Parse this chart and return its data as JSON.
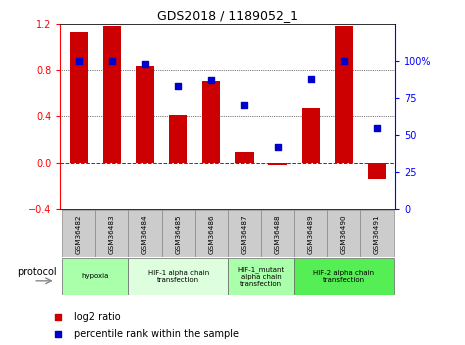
{
  "title": "GDS2018 / 1189052_1",
  "samples": [
    "GSM36482",
    "GSM36483",
    "GSM36484",
    "GSM36485",
    "GSM36486",
    "GSM36487",
    "GSM36488",
    "GSM36489",
    "GSM36490",
    "GSM36491"
  ],
  "log2_ratio": [
    1.13,
    1.18,
    0.84,
    0.41,
    0.71,
    0.09,
    -0.02,
    0.47,
    1.18,
    -0.14
  ],
  "percentile_rank": [
    100,
    100,
    98,
    83,
    87,
    70,
    42,
    88,
    100,
    55
  ],
  "bar_color": "#cc0000",
  "scatter_color": "#0000cc",
  "ylim_left": [
    -0.4,
    1.2
  ],
  "ylim_right": [
    0,
    125
  ],
  "yticks_left": [
    -0.4,
    0.0,
    0.4,
    0.8,
    1.2
  ],
  "yticks_right": [
    0,
    25,
    50,
    75,
    100
  ],
  "yticklabels_right": [
    "0",
    "25",
    "50",
    "75",
    "100%"
  ],
  "dotted_lines": [
    0.4,
    0.8
  ],
  "protocols": [
    {
      "label": "hypoxia",
      "start": 0,
      "end": 2,
      "color": "#aaffaa"
    },
    {
      "label": "HIF-1 alpha chain\ntransfection",
      "start": 2,
      "end": 5,
      "color": "#ddffdd"
    },
    {
      "label": "HIF-1_mutant\nalpha chain\ntransfection",
      "start": 5,
      "end": 7,
      "color": "#aaffaa"
    },
    {
      "label": "HIF-2 alpha chain\ntransfection",
      "start": 7,
      "end": 10,
      "color": "#55ee55"
    }
  ],
  "legend_items": [
    {
      "label": "log2 ratio",
      "color": "#cc0000"
    },
    {
      "label": "percentile rank within the sample",
      "color": "#0000cc"
    }
  ],
  "protocol_label": "protocol",
  "background_color": "#ffffff"
}
